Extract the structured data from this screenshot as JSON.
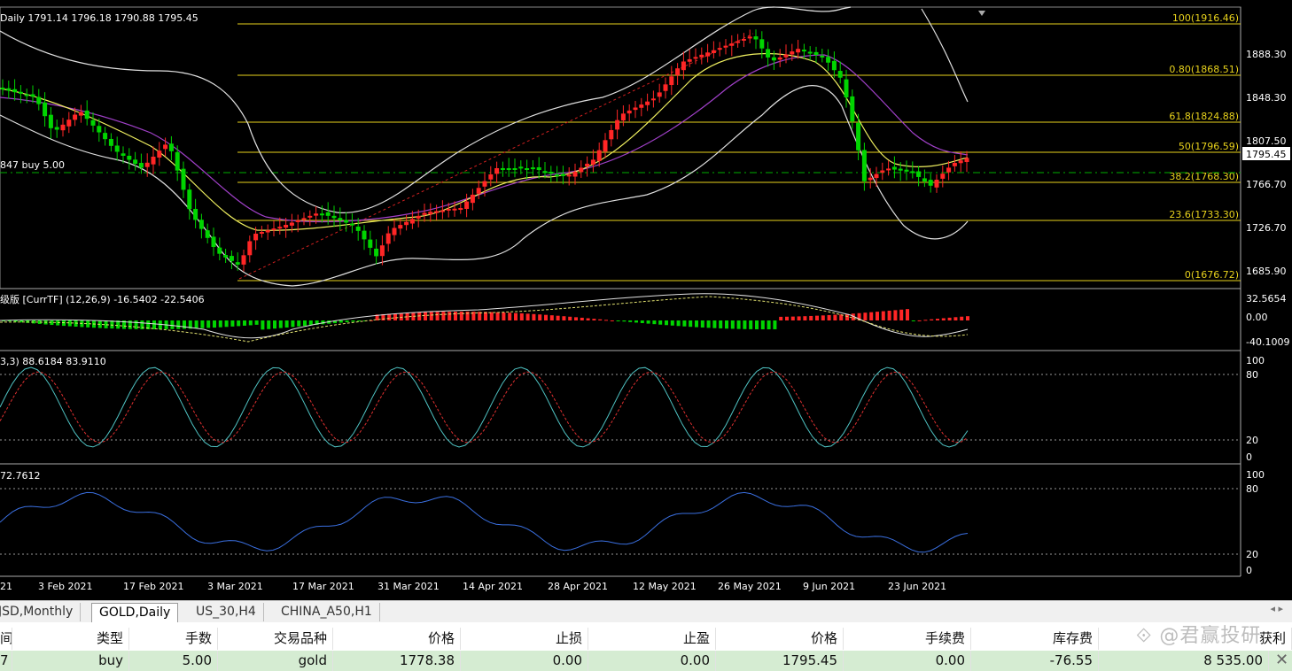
{
  "chart": {
    "header": "Daily  1791.14 1796.18 1790.88 1795.45",
    "order_label": "847 buy 5.00",
    "price_axis": [
      "1888.30",
      "1848.30",
      "1807.50",
      "1766.70",
      "1726.70",
      "1685.90"
    ],
    "current_price": "1795.45",
    "fib_levels": [
      "100(1916.46)",
      "0.80(1868.51)",
      "61.8(1824.88)",
      "50(1796.59)",
      "38.2(1768.30)",
      "23.6(1733.30)",
      "0(1676.72)"
    ],
    "macd": {
      "label": "级版 [CurrTF] (12,26,9) -16.5402 -22.5406",
      "axis": [
        "32.5654",
        "0.00",
        "-40.1009"
      ]
    },
    "stoch": {
      "label": "3,3) 88.6184 83.9110",
      "axis": [
        "100",
        "80",
        "20",
        "0"
      ]
    },
    "rsi": {
      "label": "72.7612",
      "axis": [
        "100",
        "80",
        "20",
        "0"
      ]
    },
    "date_axis": [
      "21",
      "3 Feb 2021",
      "17 Feb 2021",
      "3 Mar 2021",
      "17 Mar 2021",
      "31 Mar 2021",
      "14 Apr 2021",
      "28 Apr 2021",
      "12 May 2021",
      "26 May 2021",
      "9 Jun 2021",
      "23 Jun 2021"
    ]
  },
  "tabs": [
    "JSD,Monthly",
    "GOLD,Daily",
    "US_30,H4",
    "CHINA_A50,H1"
  ],
  "tab_arrows": "◂ ▸",
  "table": {
    "headers": [
      "间",
      "类型",
      "手数",
      "交易品种",
      "价格",
      "止损",
      "止盈",
      "价格",
      "手续费",
      "库存费",
      "获利"
    ],
    "row": [
      "7",
      "buy",
      "5.00",
      "gold",
      "1778.38",
      "0.00",
      "0.00",
      "1795.45",
      "0.00",
      "-76.55",
      "8 535.00"
    ]
  },
  "watermark": "⟐ @君赢投研",
  "close_icon": "✕",
  "colors": {
    "bull": "#ff2626",
    "bear": "#00d500",
    "fib": "#e8d21c",
    "ma_purple": "#a040c8",
    "ma_yellow": "#f0f060",
    "row_highlight": "#d5ecd2"
  }
}
